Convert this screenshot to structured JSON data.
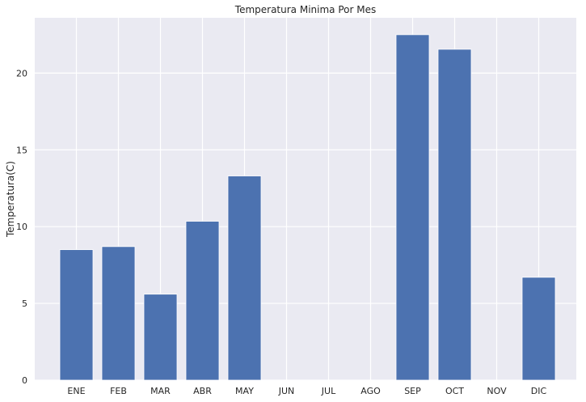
{
  "chart_data": {
    "type": "bar",
    "title": "Temperatura Minima Por Mes",
    "xlabel": "",
    "ylabel": "Temperatura(C)",
    "categories": [
      "ENE",
      "FEB",
      "MAR",
      "ABR",
      "MAY",
      "JUN",
      "JUL",
      "AGO",
      "SEP",
      "OCT",
      "NOV",
      "DIC"
    ],
    "values": [
      8.5,
      8.7,
      5.6,
      10.35,
      13.3,
      0,
      0,
      0,
      22.5,
      21.55,
      0,
      6.7
    ],
    "ylim": [
      0,
      23.6
    ],
    "yticks": [
      0,
      5,
      10,
      15,
      20
    ],
    "grid": true,
    "colors": {
      "bar": "#4c72b0",
      "background": "#eaeaf2",
      "grid": "#ffffff"
    }
  }
}
